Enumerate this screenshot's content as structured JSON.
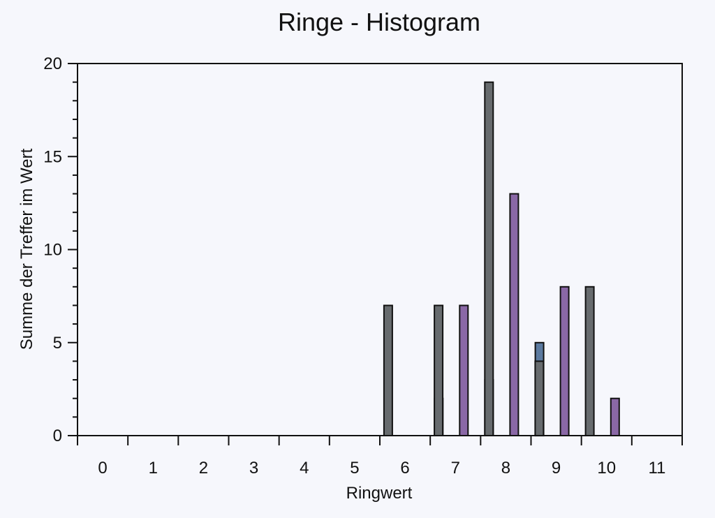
{
  "chart_data": {
    "type": "bar",
    "title": "Ringe - Histogram",
    "xlabel": "Ringwert",
    "ylabel": "Summe der Treffer im Wert",
    "categories": [
      "0",
      "1",
      "2",
      "3",
      "4",
      "5",
      "6",
      "7",
      "8",
      "9",
      "10",
      "11"
    ],
    "ylim": [
      0,
      20
    ],
    "yticks": [
      0,
      5,
      10,
      15,
      20
    ],
    "grid": false,
    "legend": "none",
    "series": [
      {
        "color": "#5b7aa0",
        "values": [
          0,
          0,
          0,
          0,
          0,
          0,
          0,
          2,
          3,
          5,
          0,
          0
        ]
      },
      {
        "color": "#8a68a6",
        "values": [
          0,
          0,
          0,
          0,
          0,
          0,
          0,
          7,
          13,
          8,
          2,
          0
        ]
      },
      {
        "color": "#676b6e",
        "values": [
          0,
          0,
          0,
          0,
          0,
          7,
          7,
          19,
          4,
          8,
          0,
          0
        ]
      }
    ]
  }
}
